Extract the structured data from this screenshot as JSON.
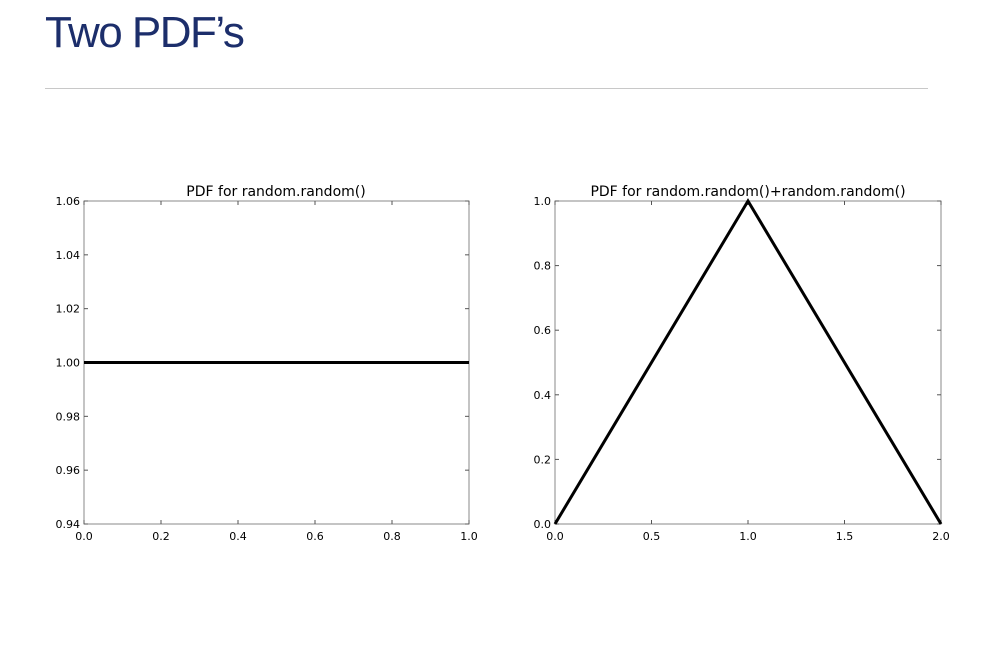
{
  "slide": {
    "title": "Two PDF’s"
  },
  "chart_data": [
    {
      "type": "line",
      "title": "PDF for random.random()",
      "xlabel": "",
      "ylabel": "",
      "xlim": [
        0.0,
        1.0
      ],
      "ylim": [
        0.94,
        1.06
      ],
      "xticks": [
        "0.0",
        "0.2",
        "0.4",
        "0.6",
        "0.8",
        "1.0"
      ],
      "yticks": [
        "0.94",
        "0.96",
        "0.98",
        "1.00",
        "1.02",
        "1.04",
        "1.06"
      ],
      "grid": false,
      "series": [
        {
          "x": [
            0.0,
            1.0
          ],
          "y": [
            1.0,
            1.0
          ],
          "color": "#000000"
        }
      ]
    },
    {
      "type": "line",
      "title": "PDF for random.random()+random.random()",
      "xlabel": "",
      "ylabel": "",
      "xlim": [
        0.0,
        2.0
      ],
      "ylim": [
        0.0,
        1.0
      ],
      "xticks": [
        "0.0",
        "0.5",
        "1.0",
        "1.5",
        "2.0"
      ],
      "yticks": [
        "0.0",
        "0.2",
        "0.4",
        "0.6",
        "0.8",
        "1.0"
      ],
      "grid": false,
      "series": [
        {
          "x": [
            0.0,
            1.0,
            2.0
          ],
          "y": [
            0.0,
            1.0,
            0.0
          ],
          "color": "#000000"
        }
      ]
    }
  ]
}
